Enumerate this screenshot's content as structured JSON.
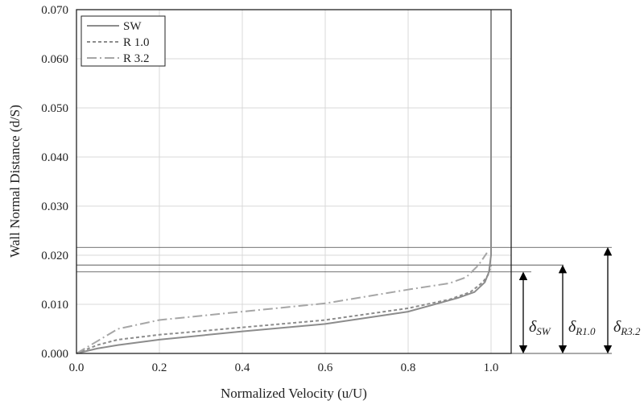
{
  "chart_data": {
    "type": "line",
    "xlabel": "Normalized Velocity (u/U)",
    "ylabel": "Wall Normal Distance (d/S)",
    "xlim": [
      0,
      1.05
    ],
    "ylim": [
      0,
      0.07
    ],
    "xticks": [
      "0.0",
      "0.2",
      "0.4",
      "0.6",
      "0.8",
      "1.0"
    ],
    "xtick_values": [
      0,
      0.2,
      0.4,
      0.6,
      0.8,
      1.0
    ],
    "yticks": [
      "0.000",
      "0.010",
      "0.020",
      "0.030",
      "0.040",
      "0.050",
      "0.060",
      "0.070"
    ],
    "ytick_values": [
      0,
      0.01,
      0.02,
      0.03,
      0.04,
      0.05,
      0.06,
      0.07
    ],
    "grid": true,
    "legend_placement": "top-left",
    "series": [
      {
        "name": "SW",
        "style": "solid",
        "color": "#8c8c8c",
        "points": [
          [
            0,
            0
          ],
          [
            0.05,
            0.001
          ],
          [
            0.1,
            0.0017
          ],
          [
            0.2,
            0.0028
          ],
          [
            0.4,
            0.0045
          ],
          [
            0.6,
            0.006
          ],
          [
            0.72,
            0.0075
          ],
          [
            0.8,
            0.0085
          ],
          [
            0.92,
            0.0113
          ],
          [
            0.96,
            0.0125
          ],
          [
            0.985,
            0.0145
          ],
          [
            0.995,
            0.0166
          ],
          [
            1.0,
            0.02
          ],
          [
            1.0,
            0.07
          ]
        ]
      },
      {
        "name": "R 1.0",
        "style": "dashed",
        "color": "#8c8c8c",
        "points": [
          [
            0,
            0
          ],
          [
            0.05,
            0.0017
          ],
          [
            0.1,
            0.0028
          ],
          [
            0.2,
            0.0038
          ],
          [
            0.4,
            0.0053
          ],
          [
            0.6,
            0.0068
          ],
          [
            0.8,
            0.0092
          ],
          [
            0.9,
            0.011
          ],
          [
            0.95,
            0.0125
          ],
          [
            0.98,
            0.0145
          ],
          [
            0.993,
            0.016
          ],
          [
            1.0,
            0.018
          ]
        ]
      },
      {
        "name": "R 3.2",
        "style": "dashdot",
        "color": "#a6a6a6",
        "points": [
          [
            0,
            0
          ],
          [
            0.02,
            0.001
          ],
          [
            0.05,
            0.0025
          ],
          [
            0.1,
            0.005
          ],
          [
            0.2,
            0.0068
          ],
          [
            0.4,
            0.0085
          ],
          [
            0.6,
            0.0102
          ],
          [
            0.8,
            0.013
          ],
          [
            0.9,
            0.0143
          ],
          [
            0.94,
            0.0155
          ],
          [
            0.97,
            0.018
          ],
          [
            0.99,
            0.0205
          ]
        ]
      }
    ],
    "annotations": [
      {
        "label": "δSW",
        "base": "δ",
        "sub": "SW",
        "y": 0.0166
      },
      {
        "label": "δR1.0",
        "base": "δ",
        "sub": "R1.0",
        "y": 0.018
      },
      {
        "label": "δR3.2",
        "base": "δ",
        "sub": "R3.2",
        "y": 0.0216
      }
    ]
  }
}
